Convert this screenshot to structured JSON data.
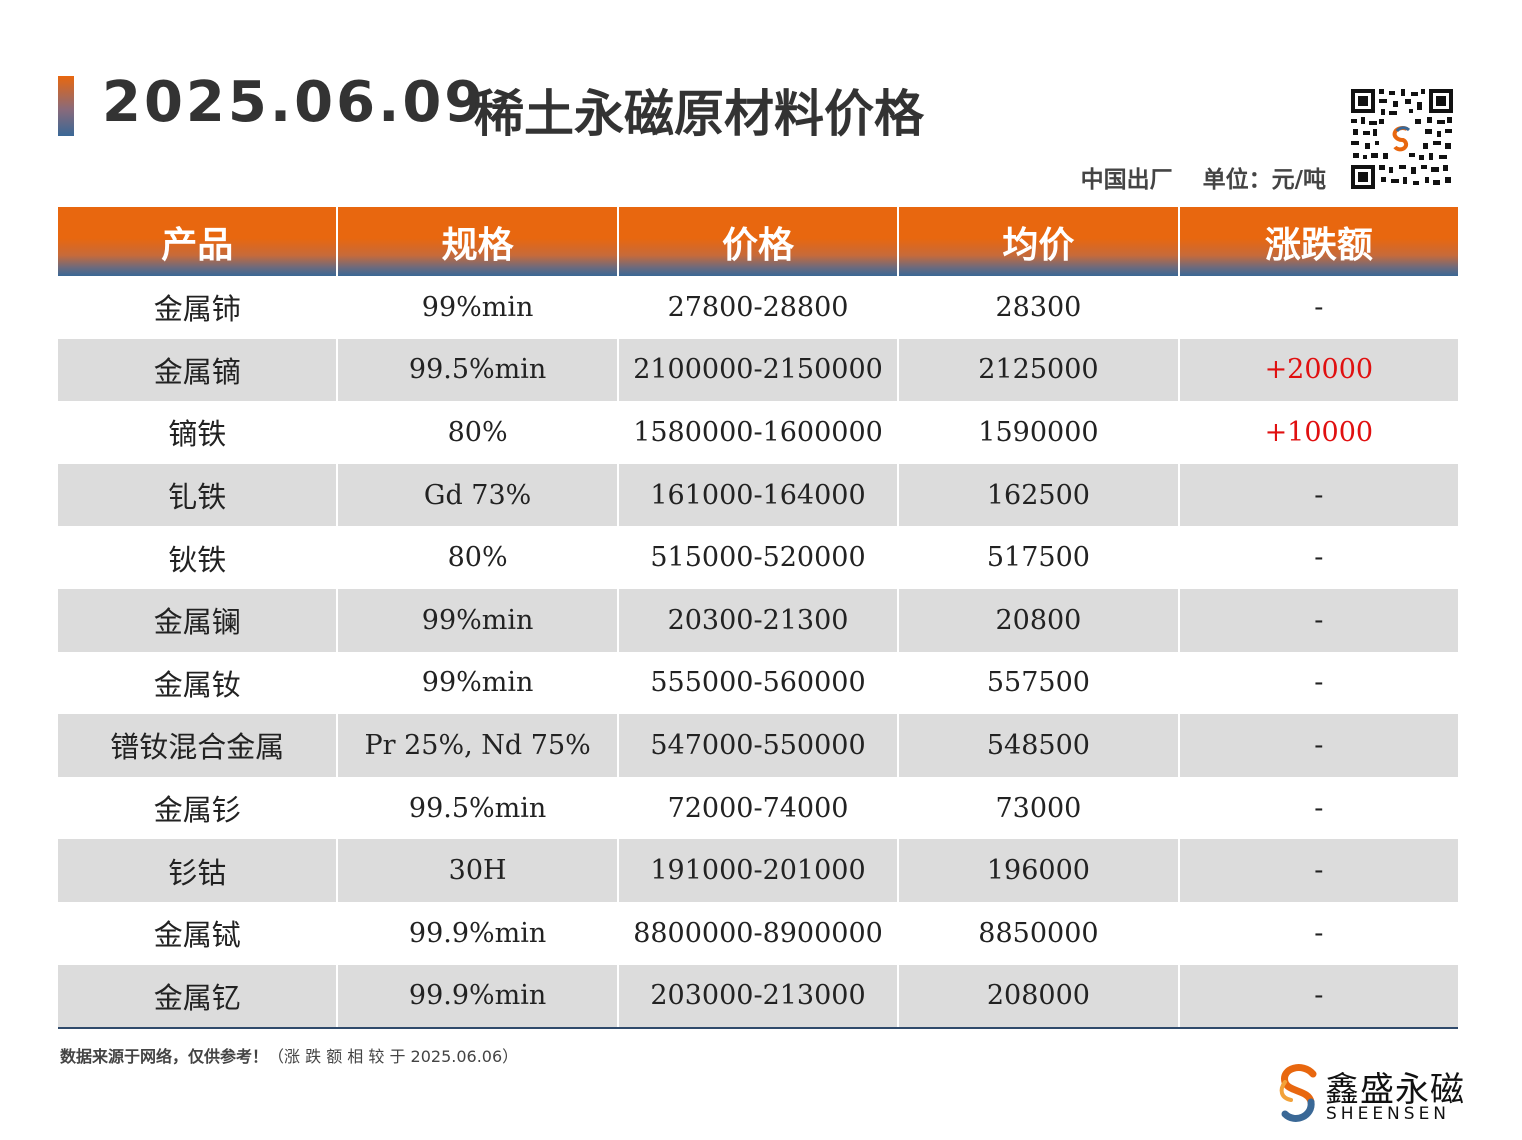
{
  "header": {
    "date": "2025.06.09",
    "title": "稀土永磁原材料价格",
    "origin": "中国出厂",
    "unit": "单位：元/吨"
  },
  "table": {
    "columns": [
      "产品",
      "规格",
      "价格",
      "均价",
      "涨跌额"
    ],
    "rows": [
      {
        "product": "金属铈",
        "spec": "99%min",
        "price": "27800-28800",
        "avg": "28300",
        "change": "-"
      },
      {
        "product": "金属镝",
        "spec": "99.5%min",
        "price": "2100000-2150000",
        "avg": "2125000",
        "change": "+20000"
      },
      {
        "product": "镝铁",
        "spec": "80%",
        "price": "1580000-1600000",
        "avg": "1590000",
        "change": "+10000"
      },
      {
        "product": "钆铁",
        "spec": "Gd 73%",
        "price": "161000-164000",
        "avg": "162500",
        "change": "-"
      },
      {
        "product": "钬铁",
        "spec": "80%",
        "price": "515000-520000",
        "avg": "517500",
        "change": "-"
      },
      {
        "product": "金属镧",
        "spec": "99%min",
        "price": "20300-21300",
        "avg": "20800",
        "change": "-"
      },
      {
        "product": "金属钕",
        "spec": "99%min",
        "price": "555000-560000",
        "avg": "557500",
        "change": "-"
      },
      {
        "product": "镨钕混合金属",
        "spec": "Pr 25%, Nd 75%",
        "price": "547000-550000",
        "avg": "548500",
        "change": "-"
      },
      {
        "product": "金属钐",
        "spec": "99.5%min",
        "price": "72000-74000",
        "avg": "73000",
        "change": "-"
      },
      {
        "product": "钐钴",
        "spec": "30H",
        "price": "191000-201000",
        "avg": "196000",
        "change": "-"
      },
      {
        "product": "金属铽",
        "spec": "99.9%min",
        "price": "8800000-8900000",
        "avg": "8850000",
        "change": "-"
      },
      {
        "product": "金属钇",
        "spec": "99.9%min",
        "price": "203000-213000",
        "avg": "208000",
        "change": "-"
      }
    ]
  },
  "footer": {
    "source": "数据来源于网络，仅供参考！",
    "compare_note": "（涨 跌 额 相 较 于 2025.06.06）"
  },
  "brand": {
    "name": "鑫盛永磁",
    "name_en": "SHEENSEN"
  },
  "colors": {
    "accent_orange": "#e8670f",
    "accent_blue": "#3a6896",
    "increase_red": "#e01010",
    "stripe_gray": "#dcdcdc"
  },
  "icons": {
    "qr": "qr-code-icon",
    "logo": "sheensen-logo-icon"
  }
}
